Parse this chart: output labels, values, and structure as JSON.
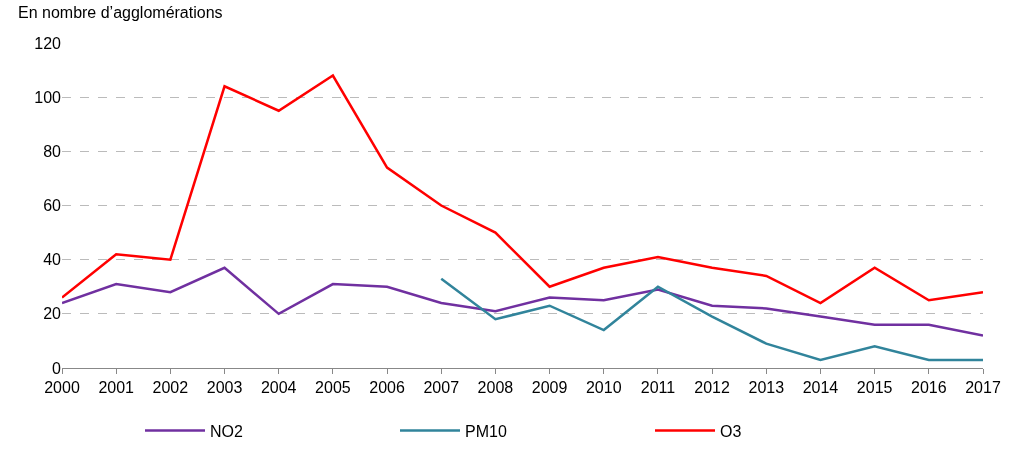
{
  "chart_data": {
    "type": "line",
    "ylabel": "En nombre d’agglomérations",
    "categories": [
      "2000",
      "2001",
      "2002",
      "2003",
      "2004",
      "2005",
      "2006",
      "2007",
      "2008",
      "2009",
      "2010",
      "2011",
      "2012",
      "2013",
      "2014",
      "2015",
      "2016",
      "2017"
    ],
    "series": [
      {
        "name": "NO2",
        "color": "#7030a0",
        "values": [
          24,
          31,
          28,
          37,
          20,
          31,
          30,
          24,
          21,
          26,
          25,
          29,
          23,
          22,
          19,
          16,
          16,
          12
        ]
      },
      {
        "name": "PM10",
        "color": "#31849b",
        "values": [
          null,
          null,
          null,
          null,
          null,
          null,
          null,
          33,
          18,
          23,
          14,
          30,
          19,
          9,
          3,
          8,
          3,
          3
        ]
      },
      {
        "name": "O3",
        "color": "#ff0000",
        "values": [
          26,
          42,
          40,
          104,
          95,
          108,
          74,
          60,
          50,
          30,
          37,
          41,
          37,
          34,
          24,
          37,
          25,
          28
        ]
      }
    ],
    "ylim": [
      0,
      120
    ],
    "yticks": [
      0,
      20,
      40,
      60,
      80,
      100,
      120
    ],
    "grid": "y",
    "legend": "bottom",
    "marker": "none",
    "line_style": "solid"
  }
}
